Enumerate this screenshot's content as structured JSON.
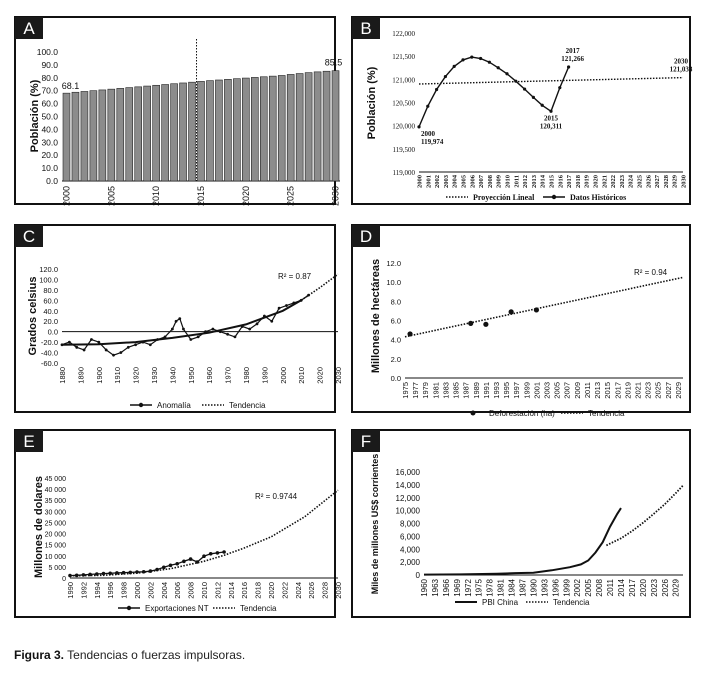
{
  "caption": {
    "label": "Figura 3.",
    "text": "Tendencias o fuerzas impulsoras."
  },
  "chart_data": [
    {
      "panel": "A",
      "type": "bar",
      "ylabel": "Población (%)",
      "yticks": [
        "100.0",
        "90.0",
        "80.0",
        "70.0",
        "60.0",
        "50.0",
        "40.0",
        "30.0",
        "20.0",
        "10.0",
        "0.0"
      ],
      "ylim": [
        0,
        100
      ],
      "xticks": [
        "2000",
        "2005",
        "2010",
        "2015",
        "2020",
        "2025",
        "2030"
      ],
      "categories": [
        2000,
        2001,
        2002,
        2003,
        2004,
        2005,
        2006,
        2007,
        2008,
        2009,
        2010,
        2011,
        2012,
        2013,
        2014,
        2015,
        2016,
        2017,
        2018,
        2019,
        2020,
        2021,
        2022,
        2023,
        2024,
        2025,
        2026,
        2027,
        2028,
        2029,
        2030
      ],
      "values": [
        68.1,
        68.8,
        69.4,
        70.0,
        70.6,
        71.2,
        71.8,
        72.4,
        73.0,
        73.6,
        74.2,
        74.8,
        75.4,
        76.0,
        76.6,
        77.2,
        77.8,
        78.3,
        78.8,
        79.3,
        79.8,
        80.3,
        80.8,
        81.3,
        81.8,
        82.6,
        83.3,
        84.0,
        84.6,
        85.1,
        85.5
      ],
      "labels": [
        "68.1",
        "85.5"
      ],
      "divider_at": 2014.5
    },
    {
      "panel": "B",
      "type": "line",
      "ylabel": "Población (%)",
      "yticks": [
        "122,000",
        "121,500",
        "121,000",
        "120,500",
        "120,000",
        "119,500",
        "119,000"
      ],
      "ylim": [
        119000,
        122000
      ],
      "xticks": [
        "2000",
        "2001",
        "2002",
        "2003",
        "2004",
        "2005",
        "2006",
        "2007",
        "2008",
        "2009",
        "2010",
        "2011",
        "2012",
        "2013",
        "2014",
        "2015",
        "2016",
        "2017",
        "2018",
        "2019",
        "2020",
        "2021",
        "2022",
        "2023",
        "2024",
        "2025",
        "2026",
        "2027",
        "2028",
        "2029",
        "2030"
      ],
      "series": [
        {
          "name": "Datos Históricos",
          "style": "solid-markers",
          "x": [
            2000,
            2001,
            2002,
            2003,
            2004,
            2005,
            2006,
            2007,
            2008,
            2009,
            2010,
            2011,
            2012,
            2013,
            2014,
            2015,
            2016,
            2017
          ],
          "y": [
            119974,
            120420,
            120780,
            121060,
            121280,
            121420,
            121480,
            121450,
            121370,
            121250,
            121120,
            120960,
            120790,
            120610,
            120440,
            120311,
            120820,
            121266
          ]
        },
        {
          "name": "Proyección Lineal",
          "style": "dotted",
          "x": [
            2000,
            2030
          ],
          "y": [
            120900,
            121038
          ]
        }
      ],
      "annotations": [
        {
          "year": "2000",
          "value": "119,974"
        },
        {
          "year": "2015",
          "value": "120,311"
        },
        {
          "year": "2017",
          "value": "121,266"
        },
        {
          "year": "2030",
          "value": "121,038"
        }
      ]
    },
    {
      "panel": "C",
      "type": "line",
      "ylabel": "Grados celsius",
      "yticks": [
        "120.0",
        "100.0",
        "80.0",
        "60.0",
        "40.0",
        "20.0",
        "0.0",
        "-20.0",
        "-40.0",
        "-60.0"
      ],
      "ylim": [
        -60,
        120
      ],
      "xticks": [
        "1880",
        "1890",
        "1900",
        "1910",
        "1920",
        "1930",
        "1940",
        "1950",
        "1960",
        "1970",
        "1980",
        "1990",
        "2000",
        "2010",
        "2020",
        "2030"
      ],
      "xlim": [
        1880,
        2030
      ],
      "r2": "R² = 0.87",
      "series": [
        {
          "name": "Anomalía",
          "style": "solid-markers",
          "x": [
            1880,
            1884,
            1888,
            1892,
            1896,
            1900,
            1904,
            1908,
            1912,
            1916,
            1920,
            1924,
            1928,
            1932,
            1936,
            1940,
            1942,
            1944,
            1946,
            1950,
            1954,
            1958,
            1962,
            1966,
            1970,
            1974,
            1978,
            1982,
            1986,
            1990,
            1994,
            1998,
            2002,
            2006,
            2010,
            2014
          ],
          "y": [
            -25,
            -20,
            -30,
            -35,
            -15,
            -20,
            -35,
            -45,
            -40,
            -30,
            -25,
            -20,
            -25,
            -15,
            -10,
            5,
            20,
            25,
            5,
            -15,
            -10,
            0,
            5,
            0,
            -5,
            -10,
            10,
            5,
            15,
            30,
            20,
            45,
            50,
            55,
            60,
            70
          ]
        },
        {
          "name": "Tendencia",
          "style": "dotted",
          "x": [
            1880,
            1900,
            1920,
            1940,
            1960,
            1980,
            2000,
            2010,
            2020,
            2030
          ],
          "y": [
            -25,
            -24,
            -20,
            -12,
            -2,
            14,
            40,
            60,
            84,
            110
          ]
        }
      ],
      "legend": [
        "Anomalía",
        "Tendencia"
      ]
    },
    {
      "panel": "D",
      "type": "scatter",
      "ylabel": "Millones de hectáreas",
      "yticks": [
        "12.0",
        "10.0",
        "8.0",
        "6.0",
        "4.0",
        "2.0",
        "0.0"
      ],
      "ylim": [
        0,
        12
      ],
      "xticks": [
        "1975",
        "1977",
        "1979",
        "1981",
        "1983",
        "1985",
        "1987",
        "1989",
        "1991",
        "1993",
        "1995",
        "1997",
        "1999",
        "2001",
        "2003",
        "2005",
        "2007",
        "2009",
        "2011",
        "2013",
        "2015",
        "2017",
        "2019",
        "2021",
        "2023",
        "2025",
        "2027",
        "2029"
      ],
      "xlim": [
        1975,
        2030
      ],
      "r2": "R² = 0.94",
      "series": [
        {
          "name": "Deforestación (ha)",
          "style": "markers",
          "x": [
            1976,
            1988,
            1991,
            1996,
            2001
          ],
          "y": [
            4.6,
            5.7,
            5.6,
            6.9,
            7.1
          ]
        },
        {
          "name": "Tendencia",
          "style": "dotted",
          "x": [
            1975,
            2030
          ],
          "y": [
            4.3,
            10.5
          ]
        }
      ]
    },
    {
      "panel": "E",
      "type": "line",
      "ylabel": "Millones de dolares",
      "yticks": [
        "45 000",
        "40 000",
        "35 000",
        "30 000",
        "25 000",
        "20 000",
        "15 000",
        "10 000",
        "5 000",
        "0"
      ],
      "ylim": [
        0,
        45000
      ],
      "xticks": [
        "1990",
        "1992",
        "1994",
        "1996",
        "1998",
        "2000",
        "2002",
        "2004",
        "2006",
        "2008",
        "2010",
        "2012",
        "2014",
        "2016",
        "2018",
        "2020",
        "2022",
        "2024",
        "2026",
        "2028",
        "2030"
      ],
      "xlim": [
        1990,
        2030
      ],
      "r2": "R² = 0.9744",
      "series": [
        {
          "name": "Exportaciones NT",
          "style": "solid-markers",
          "x": [
            1990,
            1991,
            1992,
            1993,
            1994,
            1995,
            1996,
            1997,
            1998,
            1999,
            2000,
            2001,
            2002,
            2003,
            2004,
            2005,
            2006,
            2007,
            2008,
            2009,
            2010,
            2011,
            2012,
            2013
          ],
          "y": [
            1100,
            1200,
            1400,
            1600,
            1800,
            2000,
            2100,
            2300,
            2400,
            2500,
            2700,
            2800,
            3100,
            3800,
            4800,
            5700,
            6400,
            7500,
            8500,
            7200,
            9800,
            10900,
            11300,
            11700
          ]
        },
        {
          "name": "Tendencia",
          "style": "dotted",
          "x": [
            1990,
            1995,
            2000,
            2005,
            2010,
            2013,
            2016,
            2020,
            2025,
            2030
          ],
          "y": [
            1000,
            1200,
            2200,
            4200,
            7500,
            10200,
            13500,
            18500,
            27500,
            39500
          ]
        }
      ]
    },
    {
      "panel": "F",
      "type": "line",
      "ylabel": "Miles de millones US$ corrientes",
      "yticks": [
        "16,000",
        "14,000",
        "12,000",
        "10,000",
        "8,000",
        "6,000",
        "4,000",
        "2,000",
        "0"
      ],
      "ylim": [
        0,
        16000
      ],
      "xticks": [
        "1960",
        "1963",
        "1966",
        "1969",
        "1972",
        "1975",
        "1978",
        "1981",
        "1984",
        "1987",
        "1990",
        "1993",
        "1996",
        "1999",
        "2002",
        "2005",
        "2008",
        "2011",
        "2014",
        "2017",
        "2020",
        "2023",
        "2026",
        "2029"
      ],
      "xlim": [
        1960,
        2031
      ],
      "series": [
        {
          "name": "PBI China",
          "style": "solid",
          "x": [
            1960,
            1970,
            1980,
            1985,
            1990,
            1995,
            2000,
            2003,
            2005,
            2007,
            2009,
            2011,
            2013,
            2014
          ],
          "y": [
            60,
            90,
            190,
            300,
            360,
            730,
            1210,
            1640,
            2260,
            3500,
            5100,
            7500,
            9500,
            10400
          ]
        },
        {
          "name": "Tendencia",
          "style": "dotted",
          "x": [
            2010,
            2014,
            2017,
            2020,
            2023,
            2026,
            2029,
            2031
          ],
          "y": [
            4600,
            5700,
            6800,
            8100,
            9500,
            11000,
            12700,
            13900
          ]
        }
      ]
    }
  ]
}
